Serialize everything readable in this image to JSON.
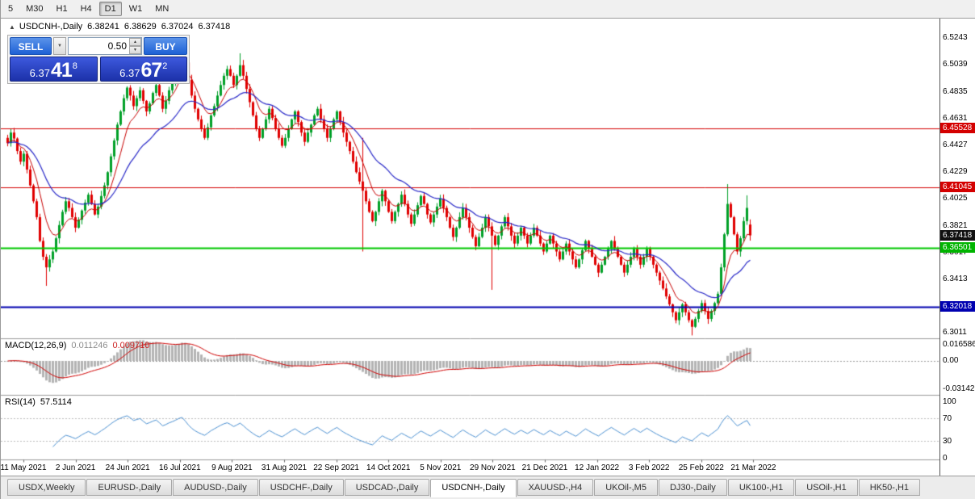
{
  "toolbar": {
    "timeframes": [
      {
        "label": "5"
      },
      {
        "label": "M30"
      },
      {
        "label": "H1"
      },
      {
        "label": "H4"
      },
      {
        "label": "D1",
        "active": true
      },
      {
        "label": "W1"
      },
      {
        "label": "MN"
      }
    ]
  },
  "chart_header": {
    "collapse_glyph": "▲",
    "title": "USDCNH-,Daily",
    "open": "6.38241",
    "high": "6.38629",
    "low": "6.37024",
    "close": "6.37418"
  },
  "trade_panel": {
    "sell_label": "SELL",
    "buy_label": "BUY",
    "lot_size": "0.50",
    "caret_glyph": "▼",
    "spin_up_glyph": "▲",
    "spin_down_glyph": "▼",
    "sell_price": {
      "base": "6.37",
      "pips": "41",
      "point": "8"
    },
    "buy_price": {
      "base": "6.37",
      "pips": "67",
      "point": "2"
    }
  },
  "price_scale": {
    "ticks": [
      "6.5243",
      "6.5039",
      "6.4835",
      "6.4631",
      "6.4427",
      "6.4229",
      "6.4025",
      "6.3821",
      "6.3617",
      "6.3413",
      "6.3011"
    ],
    "badges": [
      {
        "label": "6.45528",
        "price": 6.45528,
        "color": "#D40000"
      },
      {
        "label": "6.41045",
        "price": 6.41045,
        "color": "#D40000"
      },
      {
        "label": "6.37418",
        "price": 6.37418,
        "color": "#101010"
      },
      {
        "label": "6.36501",
        "price": 6.36501,
        "color": "#00B400"
      },
      {
        "label": "6.32018",
        "price": 6.32018,
        "color": "#0000B0"
      }
    ]
  },
  "indicators": {
    "macd": {
      "label": "MACD(12,26,9)",
      "main_value": "0.011246",
      "signal_value": "0.009710",
      "scale_top": "0.016586",
      "scale_zero": "0.00",
      "scale_bottom": "-0.031421",
      "params": [
        12,
        26,
        9
      ]
    },
    "rsi": {
      "label": "RSI(14)",
      "value": "57.5114",
      "period": 14,
      "scale": [
        "100",
        "70",
        "30",
        "0"
      ],
      "levels": [
        70,
        30
      ]
    }
  },
  "tabs": [
    {
      "label": "USDX,Weekly"
    },
    {
      "label": "EURUSD-,Daily"
    },
    {
      "label": "AUDUSD-,Daily"
    },
    {
      "label": "USDCHF-,Daily"
    },
    {
      "label": "USDCAD-,Daily"
    },
    {
      "label": "USDCNH-,Daily",
      "active": true
    },
    {
      "label": "XAUUSD-,H4"
    },
    {
      "label": "UKOil-,M5"
    },
    {
      "label": "DJ30-,Daily"
    },
    {
      "label": "UK100-,H1"
    },
    {
      "label": "USOil-,H1"
    },
    {
      "label": "HK50-,H1"
    }
  ],
  "colors": {
    "bull": "#00A028",
    "bear": "#E00000",
    "ma_fast": "#C80000",
    "ma_slow": "#2828C8",
    "macd_hist": "#B4B4B4",
    "macd_signal": "#D00000",
    "rsi_line": "#4A90D2",
    "level_red": "#D40000",
    "level_green": "#00C800",
    "level_blue": "#0000B0",
    "button_blue": "#2F6FD6",
    "price_display_blue": "#2741C0"
  },
  "chart_data": {
    "type": "candlestick",
    "symbol": "USDCNH-",
    "timeframe": "Daily",
    "title": "USDCNH-,Daily",
    "y_range": [
      6.2963,
      6.5285
    ],
    "last_candle": {
      "open": 6.38241,
      "high": 6.38629,
      "low": 6.37024,
      "close": 6.37418
    },
    "levels": [
      {
        "price": 6.45528,
        "color": "#D40000",
        "width": 1
      },
      {
        "price": 6.41045,
        "color": "#D40000",
        "width": 1
      },
      {
        "price": 6.36501,
        "color": "#00C800",
        "width": 2
      },
      {
        "price": 6.32018,
        "color": "#0000B0",
        "width": 2
      }
    ],
    "overlays": [
      "MA fast (red)",
      "MA slow (blue)"
    ],
    "x_labels": [
      "11 May 2021",
      "2 Jun 2021",
      "24 Jun 2021",
      "16 Jul 2021",
      "9 Aug 2021",
      "31 Aug 2021",
      "22 Sep 2021",
      "14 Oct 2021",
      "5 Nov 2021",
      "29 Nov 2021",
      "21 Dec 2021",
      "12 Jan 2022",
      "3 Feb 2022",
      "25 Feb 2022",
      "21 Mar 2022"
    ],
    "closes": [
      6.444,
      6.452,
      6.4475,
      6.438,
      6.43,
      6.436,
      6.424,
      6.412,
      6.4,
      6.388,
      6.37,
      6.358,
      6.35,
      6.356,
      6.362,
      6.372,
      6.382,
      6.392,
      6.4,
      6.395,
      6.388,
      6.38,
      6.386,
      6.393,
      6.399,
      6.405,
      6.398,
      6.39,
      6.396,
      6.404,
      6.412,
      6.422,
      6.434,
      6.446,
      6.458,
      6.468,
      6.478,
      6.486,
      6.48,
      6.472,
      6.478,
      6.484,
      6.476,
      6.468,
      6.474,
      6.482,
      6.488,
      6.48,
      6.47,
      6.476,
      6.484,
      6.49,
      6.498,
      6.508,
      6.515,
      6.505,
      6.492,
      6.48,
      6.47,
      6.462,
      6.455,
      6.448,
      6.456,
      6.465,
      6.472,
      6.48,
      6.488,
      6.495,
      6.5,
      6.495,
      6.488,
      6.495,
      6.503,
      6.495,
      6.485,
      6.475,
      6.465,
      6.455,
      6.448,
      6.455,
      6.462,
      6.47,
      6.463,
      6.455,
      6.448,
      6.442,
      6.448,
      6.455,
      6.462,
      6.468,
      6.46,
      6.452,
      6.445,
      6.452,
      6.458,
      6.465,
      6.47,
      6.462,
      6.455,
      6.448,
      6.455,
      6.462,
      6.468,
      6.46,
      6.452,
      6.445,
      6.438,
      6.43,
      6.422,
      6.415,
      6.408,
      6.4,
      6.392,
      6.385,
      6.392,
      6.4,
      6.408,
      6.4,
      6.392,
      6.385,
      6.392,
      6.398,
      6.405,
      6.398,
      6.39,
      6.383,
      6.39,
      6.397,
      6.404,
      6.398,
      6.39,
      6.384,
      6.39,
      6.396,
      6.402,
      6.395,
      6.388,
      6.38,
      6.373,
      6.38,
      6.388,
      6.395,
      6.388,
      6.38,
      6.373,
      6.366,
      6.373,
      6.38,
      6.388,
      6.381,
      6.374,
      6.367,
      6.374,
      6.381,
      6.388,
      6.381,
      6.374,
      6.368,
      6.374,
      6.38,
      6.374,
      6.368,
      6.374,
      6.38,
      6.374,
      6.368,
      6.362,
      6.368,
      6.374,
      6.368,
      6.362,
      6.356,
      6.362,
      6.368,
      6.362,
      6.356,
      6.35,
      6.356,
      6.363,
      6.37,
      6.364,
      6.358,
      6.352,
      6.346,
      6.352,
      6.358,
      6.364,
      6.37,
      6.364,
      6.358,
      6.352,
      6.346,
      6.352,
      6.358,
      6.364,
      6.358,
      6.352,
      6.358,
      6.364,
      6.358,
      6.352,
      6.346,
      6.34,
      6.334,
      6.328,
      6.322,
      6.316,
      6.31,
      6.316,
      6.322,
      6.316,
      6.31,
      6.305,
      6.311,
      6.317,
      6.323,
      6.317,
      6.311,
      6.317,
      6.323,
      6.33,
      6.35,
      6.375,
      6.398,
      6.388,
      6.375,
      6.362,
      6.372,
      6.385,
      6.395,
      6.37418
    ],
    "wick_overrides": {
      "12": {
        "low": 6.336
      },
      "54": {
        "high": 6.52
      },
      "72": {
        "high": 6.512
      },
      "110": {
        "high": 6.448,
        "low": 6.362
      },
      "150": {
        "low": 6.333
      },
      "212": {
        "low": 6.2985
      },
      "223": {
        "high": 6.413
      },
      "229": {
        "high": 6.4045
      }
    }
  }
}
